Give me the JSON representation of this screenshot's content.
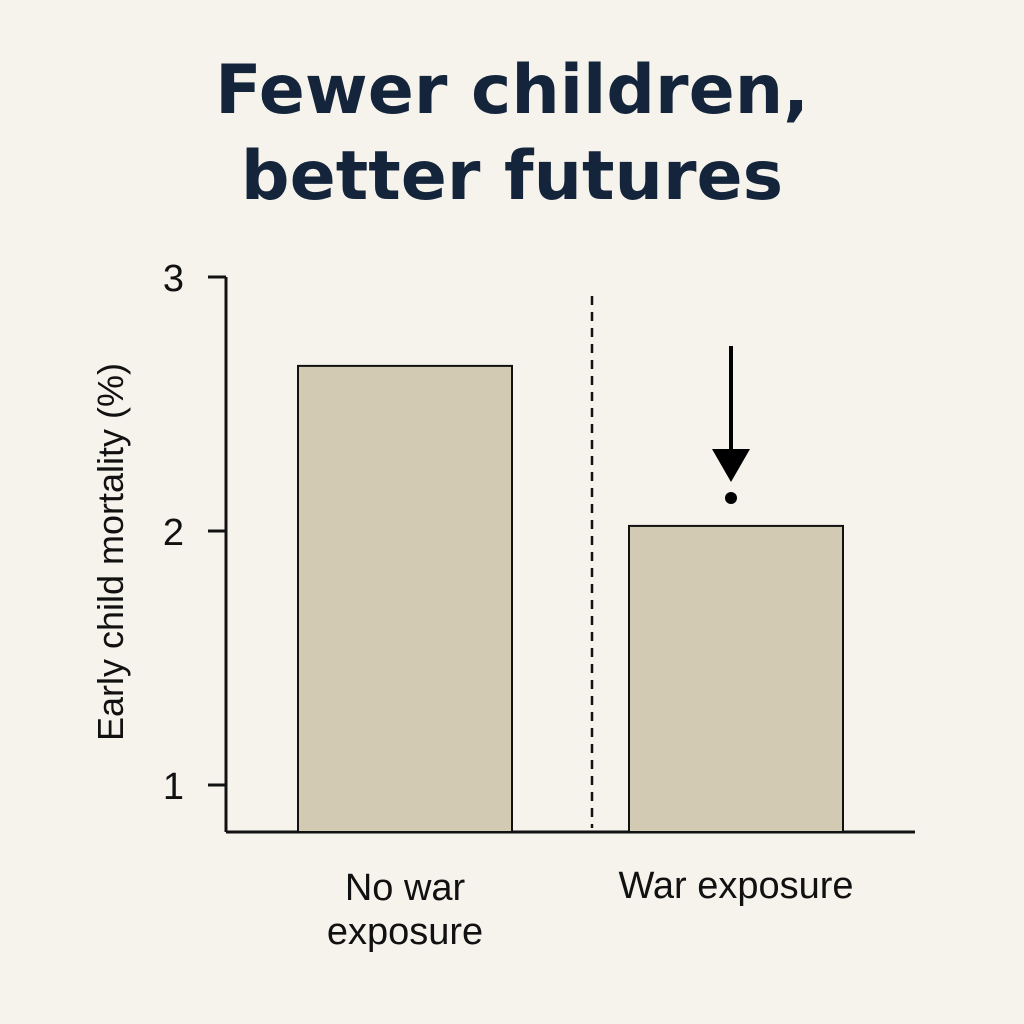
{
  "chart_data": {
    "type": "bar",
    "title": [
      "Fewer children,",
      "better futures"
    ],
    "ylabel": "Early child mortality (%)",
    "xlabel": "",
    "ylim": [
      0.8,
      3
    ],
    "yticks": [
      1,
      2,
      3
    ],
    "categories": [
      [
        "No war",
        "exposure"
      ],
      [
        "War exposure"
      ]
    ],
    "values": [
      2.65,
      2.02
    ],
    "grid": false,
    "annotations": [
      {
        "type": "dashed-divider",
        "between": [
          0,
          1
        ]
      },
      {
        "type": "down-arrow",
        "category": 1,
        "meaning": "decrease"
      }
    ]
  },
  "colors": {
    "background": "#f6f3ec",
    "bar_fill": "#d3cab4",
    "bar_stroke": "#111111",
    "axis": "#111111",
    "title": "#14243b"
  }
}
